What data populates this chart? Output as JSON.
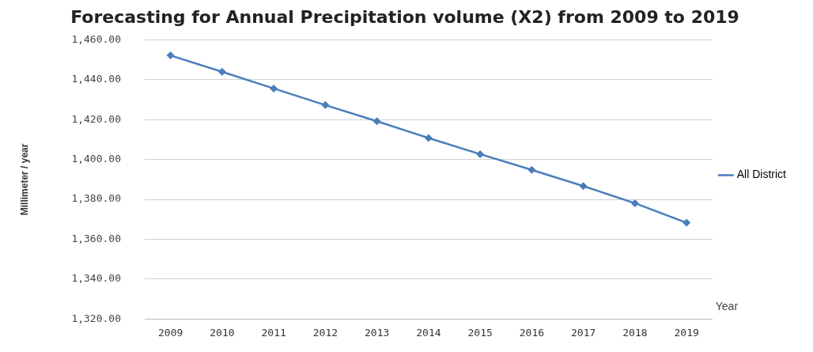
{
  "chart_data": {
    "type": "line",
    "title": "Forecasting for Annual Precipitation volume (X2) from 2009 to 2019",
    "xlabel": "Year",
    "ylabel": "Millimeter / year",
    "categories": [
      "2009",
      "2010",
      "2011",
      "2012",
      "2013",
      "2014",
      "2015",
      "2016",
      "2017",
      "2018",
      "2019"
    ],
    "series": [
      {
        "name": "All District",
        "color": "#4a7ebb",
        "values": [
          1452.2,
          1444.0,
          1435.6,
          1427.3,
          1419.2,
          1410.8,
          1402.7,
          1394.8,
          1386.7,
          1378.1,
          1368.3
        ]
      }
    ],
    "ylim": [
      1320,
      1460
    ],
    "yticks": [
      {
        "value": 1320,
        "label": "1,320.00"
      },
      {
        "value": 1340,
        "label": "1,340.00"
      },
      {
        "value": 1360,
        "label": "1,360.00"
      },
      {
        "value": 1380,
        "label": "1,380.00"
      },
      {
        "value": 1400,
        "label": "1,400.00"
      },
      {
        "value": 1420,
        "label": "1,420.00"
      },
      {
        "value": 1440,
        "label": "1,440.00"
      },
      {
        "value": 1460,
        "label": "1,460.00"
      }
    ],
    "grid": "y",
    "legend": "right",
    "marker": "diamond",
    "line_style": "solid"
  }
}
